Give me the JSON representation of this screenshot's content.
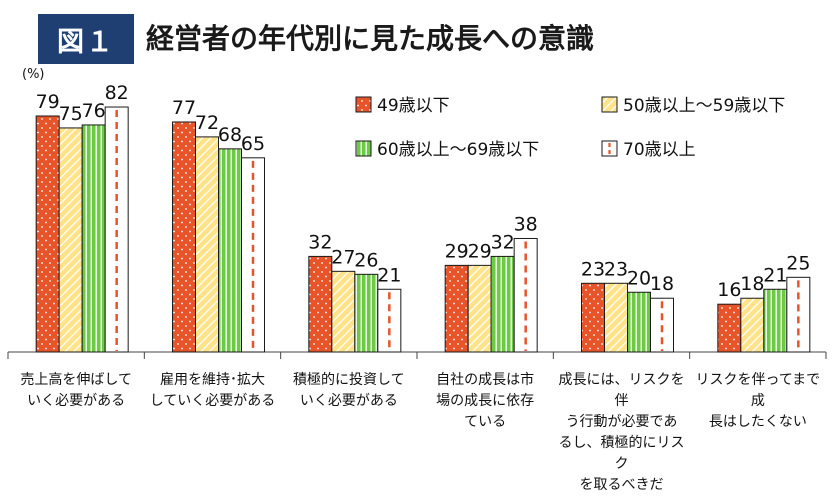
{
  "figure": {
    "badge": "図１",
    "title": "経営者の年代別に見た成長への意識"
  },
  "chart_data": {
    "type": "bar",
    "ylabel": "(%)",
    "ylim": [
      0,
      90
    ],
    "grid": false,
    "legend_position": "top-right",
    "categories": [
      "売上高を伸ばしていく必要がある",
      "雇用を維持･拡大していく必要がある",
      "積極的に投資していく必要がある",
      "自社の成長は市場の成長に依存している",
      "成長には、リスクを伴う行動が必要であるし、積極的にリスクを取るべきだ",
      "リスクを伴ってまで成長はしたくない"
    ],
    "category_lines": [
      [
        "売上高を伸ばして",
        "いく必要がある"
      ],
      [
        "雇用を維持･拡大",
        "していく必要がある"
      ],
      [
        "積極的に投資して",
        "いく必要がある"
      ],
      [
        "自社の成長は市",
        "場の成長に依存",
        "ている"
      ],
      [
        "成長には、リスクを伴",
        "う行動が必要であ",
        "るし、積極的にリスク",
        "を取るべきだ"
      ],
      [
        "リスクを伴ってまで成",
        "長はしたくない"
      ]
    ],
    "series": [
      {
        "name": "49歳以下",
        "values": [
          79,
          77,
          32,
          29,
          23,
          16
        ]
      },
      {
        "name": "50歳以上～59歳以下",
        "values": [
          75,
          72,
          27,
          29,
          23,
          18
        ]
      },
      {
        "name": "60歳以上～69歳以下",
        "values": [
          76,
          68,
          26,
          32,
          20,
          21
        ]
      },
      {
        "name": "70歳以上",
        "values": [
          82,
          65,
          21,
          38,
          18,
          25
        ]
      }
    ],
    "colors": {
      "s1_fill": "#e8542a",
      "s2_fill": "#ffe38a",
      "s3_fill": "#6ccb44",
      "s4_fill": "#ffffff",
      "s4_dash": "#e8542a",
      "outline": "#1a1a1a"
    }
  }
}
